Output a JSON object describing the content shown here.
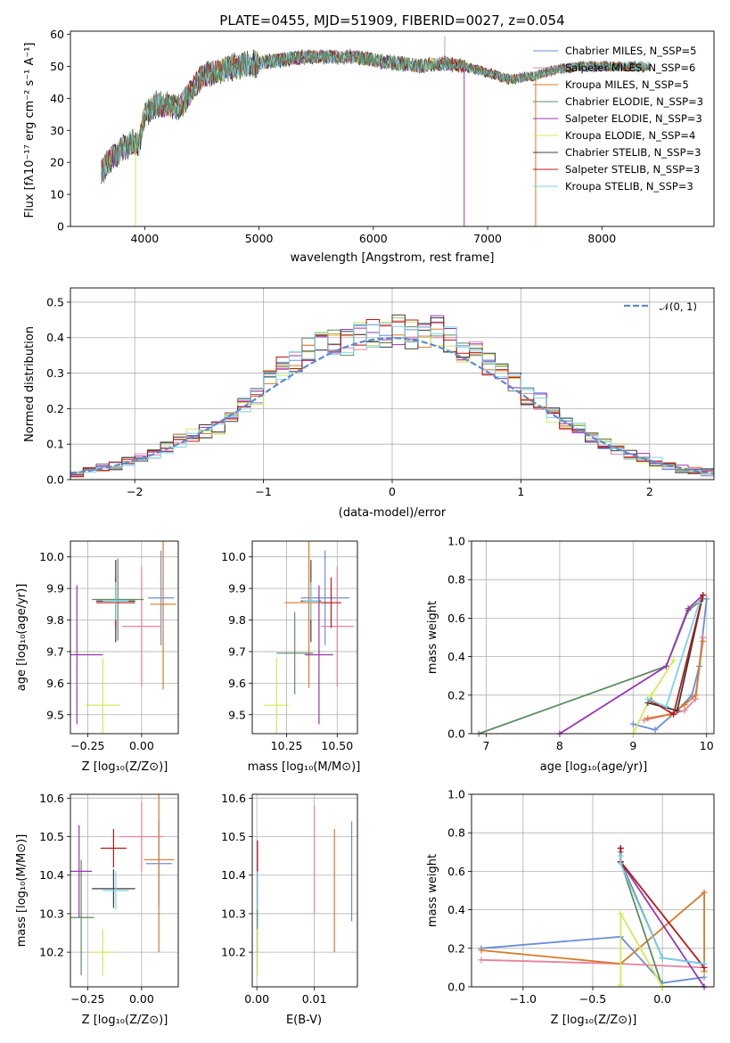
{
  "colors": [
    "#6a8fd8",
    "#e8829c",
    "#d97a28",
    "#5e8c62",
    "#9a34b4",
    "#d4e85a",
    "#3c3c3c",
    "#b81818",
    "#7ad4e8"
  ],
  "panels": {
    "spectrum": {
      "title": "PLATE=0455, MJD=51909, FIBERID=0027, z=0.054",
      "xlabel": "wavelength [Angstrom, rest frame]",
      "ylabel": "Flux [fλ10⁻¹⁷ erg cm⁻² s⁻¹ A⁻¹]"
    },
    "residuals": {
      "xlabel": "(data-model)/error",
      "ylabel": "Normed distribution",
      "legend_normal": "𝒩(0, 1)"
    },
    "age_Z": {
      "xlabel": "Z [log₁₀(Z/Z⊙)]",
      "ylabel": "age  [log₁₀(age/yr)]"
    },
    "age_mass": {
      "xlabel": "mass [log₁₀(M/M⊙)]"
    },
    "mw_age": {
      "xlabel": "age  [log₁₀(age/yr)]",
      "ylabel": "mass weight"
    },
    "mass_Z": {
      "xlabel": "Z [log₁₀(Z/Z⊙)]",
      "ylabel": "mass [log₁₀(M/M⊙)]"
    },
    "mass_ebv": {
      "xlabel": "E(B-V)"
    },
    "mw_Z": {
      "xlabel": "Z [log₁₀(Z/Z⊙)]",
      "ylabel": "mass weight"
    }
  },
  "chart_data": [
    {
      "type": "line",
      "panel": "spectrum",
      "title": "PLATE=0455, MJD=51909, FIBERID=0027, z=0.054",
      "xlabel": "wavelength [Angstrom, rest frame]",
      "ylabel": "Flux [fλ10⁻¹⁷ erg cm⁻² s⁻¹ A⁻¹]",
      "xlim": [
        3350,
        8980
      ],
      "ylim": [
        0,
        61
      ],
      "xticks": [
        4000,
        5000,
        6000,
        7000,
        8000
      ],
      "yticks": [
        0,
        10,
        20,
        30,
        40,
        50,
        60
      ],
      "grid": false,
      "legend": "top-right",
      "series": [
        {
          "name": "Chabrier MILES, N_SSP=5"
        },
        {
          "name": "Salpeter MILES, N_SSP=6"
        },
        {
          "name": "Kroupa MILES, N_SSP=5"
        },
        {
          "name": "Chabrier ELODIE, N_SSP=3"
        },
        {
          "name": "Salpeter ELODIE, N_SSP=3"
        },
        {
          "name": "Kroupa ELODIE, N_SSP=4"
        },
        {
          "name": "Chabrier STELIB, N_SSP=3"
        },
        {
          "name": "Salpeter STELIB, N_SSP=3"
        },
        {
          "name": "Kroupa STELIB, N_SSP=3"
        }
      ],
      "continuum": {
        "x": [
          3620,
          3700,
          3800,
          3900,
          3950,
          4000,
          4100,
          4200,
          4300,
          4400,
          4500,
          4600,
          4800,
          5000,
          5200,
          5400,
          5600,
          5800,
          6000,
          6200,
          6400,
          6600,
          6800,
          7000,
          7200,
          7400,
          7600,
          7800,
          8000,
          8200,
          8400
        ],
        "y": [
          17,
          21,
          24,
          26,
          26,
          35,
          38,
          38,
          37,
          42,
          47,
          48,
          50,
          51,
          52,
          53,
          53,
          53,
          52,
          51,
          50,
          51,
          50,
          48,
          46,
          47,
          49,
          50,
          50,
          50,
          50
        ]
      }
    },
    {
      "type": "step",
      "panel": "residuals",
      "xlabel": "(data-model)/error",
      "ylabel": "Normed distribution",
      "xlim": [
        -2.5,
        2.5
      ],
      "ylim": [
        0,
        0.54
      ],
      "xticks": [
        -2,
        -1,
        0,
        1,
        2
      ],
      "yticks": [
        0,
        0.1,
        0.2,
        0.3,
        0.4,
        0.5
      ],
      "grid": true,
      "legend": "top-right",
      "bin_width": 0.1,
      "hist_x": [
        -2.45,
        -2.35,
        -2.25,
        -2.15,
        -2.05,
        -1.95,
        -1.85,
        -1.75,
        -1.65,
        -1.55,
        -1.45,
        -1.35,
        -1.25,
        -1.15,
        -1.05,
        -0.95,
        -0.85,
        -0.75,
        -0.65,
        -0.55,
        -0.45,
        -0.35,
        -0.25,
        -0.15,
        -0.05,
        0.05,
        0.15,
        0.25,
        0.35,
        0.45,
        0.55,
        0.65,
        0.75,
        0.85,
        0.95,
        1.05,
        1.15,
        1.25,
        1.35,
        1.45,
        1.55,
        1.65,
        1.75,
        1.85,
        1.95,
        2.05,
        2.15,
        2.25,
        2.35,
        2.45
      ],
      "hist_y": [
        0.015,
        0.025,
        0.035,
        0.04,
        0.05,
        0.06,
        0.075,
        0.09,
        0.11,
        0.125,
        0.135,
        0.15,
        0.18,
        0.21,
        0.24,
        0.28,
        0.31,
        0.34,
        0.36,
        0.38,
        0.39,
        0.39,
        0.4,
        0.41,
        0.41,
        0.42,
        0.41,
        0.4,
        0.42,
        0.39,
        0.37,
        0.35,
        0.32,
        0.3,
        0.27,
        0.24,
        0.22,
        0.18,
        0.16,
        0.14,
        0.12,
        0.1,
        0.085,
        0.07,
        0.06,
        0.05,
        0.04,
        0.03,
        0.025,
        0.02
      ],
      "normal": {
        "mean": 0,
        "sigma": 1,
        "name": "𝒩(0, 1)"
      }
    },
    {
      "type": "scatter",
      "panel": "age_Z",
      "xlabel": "Z [log₁₀(Z/Z⊙)]",
      "ylabel": "age  [log₁₀(age/yr)]",
      "xlim": [
        -0.33,
        0.17
      ],
      "ylim": [
        9.44,
        10.05
      ],
      "xticks": [
        -0.25,
        0.0
      ],
      "yticks": [
        9.5,
        9.6,
        9.7,
        9.8,
        9.9,
        10.0
      ],
      "points": [
        {
          "s": 0,
          "x": 0.09,
          "y": 9.87,
          "xe": 0.06,
          "ye": 0.15
        },
        {
          "s": 1,
          "x": 0.0,
          "y": 9.78,
          "xe": 0.09,
          "ye": 0.19
        },
        {
          "s": 2,
          "x": 0.1,
          "y": 9.85,
          "xe": 0.06,
          "ye": 0.27
        },
        {
          "s": 3,
          "x": -0.11,
          "y": 9.865,
          "xe": 0.12,
          "ye": 0.13
        },
        {
          "s": 4,
          "x": -0.3,
          "y": 9.69,
          "xe": 0.12,
          "ye": 0.22
        },
        {
          "s": 5,
          "x": -0.18,
          "y": 9.53,
          "xe": 0.08,
          "ye": 0.15
        },
        {
          "s": 6,
          "x": -0.12,
          "y": 9.86,
          "xe": 0.09,
          "ye": 0.13
        },
        {
          "s": 7,
          "x": -0.12,
          "y": 9.855,
          "xe": 0.09,
          "ye": 0.08
        },
        {
          "s": 8,
          "x": -0.12,
          "y": 9.86,
          "xe": 0.06,
          "ye": 0.06
        }
      ]
    },
    {
      "type": "scatter",
      "panel": "age_mass",
      "xlabel": "mass [log₁₀(M/M⊙)]",
      "xlim": [
        10.08,
        10.6
      ],
      "ylim": [
        9.44,
        10.05
      ],
      "xticks": [
        10.25,
        10.5
      ],
      "yticks": [
        9.5,
        9.6,
        9.7,
        9.8,
        9.9,
        10.0
      ],
      "points": [
        {
          "s": 0,
          "x": 10.44,
          "y": 9.87,
          "xe": 0.12,
          "ye": 0.15
        },
        {
          "s": 1,
          "x": 10.5,
          "y": 9.78,
          "xe": 0.08,
          "ye": 0.19
        },
        {
          "s": 2,
          "x": 10.36,
          "y": 9.855,
          "xe": 0.12,
          "ye": 0.27
        },
        {
          "s": 3,
          "x": 10.29,
          "y": 9.695,
          "xe": 0.09,
          "ye": 0.13
        },
        {
          "s": 4,
          "x": 10.41,
          "y": 9.69,
          "xe": 0.07,
          "ye": 0.22
        },
        {
          "s": 5,
          "x": 10.2,
          "y": 9.53,
          "xe": 0.06,
          "ye": 0.15
        },
        {
          "s": 6,
          "x": 10.37,
          "y": 9.86,
          "xe": 0.05,
          "ye": 0.13
        },
        {
          "s": 7,
          "x": 10.47,
          "y": 9.855,
          "xe": 0.05,
          "ye": 0.08
        },
        {
          "s": 8,
          "x": 10.37,
          "y": 9.86,
          "xe": 0.04,
          "ye": 0.06
        }
      ]
    },
    {
      "type": "line",
      "panel": "mw_age",
      "xlabel": "age  [log₁₀(age/yr)]",
      "ylabel": "mass weight",
      "xlim": [
        6.8,
        10.1
      ],
      "ylim": [
        0,
        1.0
      ],
      "xticks": [
        7,
        8,
        9,
        10
      ],
      "yticks": [
        0,
        0.2,
        0.4,
        0.6,
        0.8,
        1.0
      ],
      "series": [
        {
          "x": [
            9.0,
            9.3,
            9.6,
            9.8,
            9.9,
            10.0
          ],
          "y": [
            0.05,
            0.02,
            0.12,
            0.2,
            0.35,
            0.7
          ]
        },
        {
          "x": [
            9.15,
            9.5,
            9.7,
            9.85,
            9.95
          ],
          "y": [
            0.07,
            0.1,
            0.12,
            0.18,
            0.5
          ]
        },
        {
          "x": [
            9.2,
            9.5,
            9.7,
            9.85,
            9.95
          ],
          "y": [
            0.08,
            0.1,
            0.15,
            0.2,
            0.48
          ]
        },
        {
          "x": [
            6.9,
            9.45,
            9.75,
            9.95
          ],
          "y": [
            0.0,
            0.35,
            0.64,
            0.7
          ]
        },
        {
          "x": [
            8.0,
            9.45,
            9.75,
            9.95
          ],
          "y": [
            0.0,
            0.35,
            0.65,
            0.72
          ]
        },
        {
          "x": [
            9.0,
            9.25,
            9.55
          ],
          "y": [
            0.0,
            0.2,
            0.38
          ]
        },
        {
          "x": [
            9.2,
            9.6,
            9.95
          ],
          "y": [
            0.16,
            0.12,
            0.72
          ]
        },
        {
          "x": [
            9.25,
            9.55,
            9.95
          ],
          "y": [
            0.17,
            0.1,
            0.72
          ]
        },
        {
          "x": [
            9.2,
            9.45,
            9.9
          ],
          "y": [
            0.18,
            0.14,
            0.68
          ]
        }
      ]
    },
    {
      "type": "scatter",
      "panel": "mass_Z",
      "xlabel": "Z [log₁₀(Z/Z⊙)]",
      "ylabel": "mass [log₁₀(M/M⊙)]",
      "xlim": [
        -0.33,
        0.17
      ],
      "ylim": [
        10.11,
        10.61
      ],
      "xticks": [
        -0.25,
        0.0
      ],
      "yticks": [
        10.2,
        10.3,
        10.4,
        10.5,
        10.6
      ],
      "points": [
        {
          "s": 0,
          "x": 0.08,
          "y": 10.43,
          "xe": 0.06,
          "ye": 0.11
        },
        {
          "s": 1,
          "x": 0.0,
          "y": 10.5,
          "xe": 0.1,
          "ye": 0.09
        },
        {
          "s": 2,
          "x": 0.08,
          "y": 10.44,
          "xe": 0.07,
          "ye": 0.24
        },
        {
          "s": 3,
          "x": -0.28,
          "y": 10.29,
          "xe": 0.06,
          "ye": 0.15
        },
        {
          "s": 4,
          "x": -0.29,
          "y": 10.41,
          "xe": 0.06,
          "ye": 0.12
        },
        {
          "s": 5,
          "x": -0.18,
          "y": 10.2,
          "xe": 0.05,
          "ye": 0.06
        },
        {
          "s": 6,
          "x": -0.13,
          "y": 10.365,
          "xe": 0.1,
          "ye": 0.05
        },
        {
          "s": 7,
          "x": -0.13,
          "y": 10.47,
          "xe": 0.06,
          "ye": 0.05
        },
        {
          "s": 8,
          "x": -0.12,
          "y": 10.36,
          "xe": 0.06,
          "ye": 0.05
        }
      ]
    },
    {
      "type": "scatter",
      "panel": "mass_ebv",
      "xlabel": "E(B-V)",
      "xlim": [
        -0.0008,
        0.0175
      ],
      "ylim": [
        10.11,
        10.61
      ],
      "xticks": [
        0.0,
        0.01
      ],
      "xticklabels": [
        "0.00",
        "0.01"
      ],
      "yticks": [
        10.2,
        10.3,
        10.4,
        10.5,
        10.6
      ],
      "points": [
        {
          "s": 0,
          "x": 0.0165,
          "y": 10.41,
          "xe": 0.0,
          "ye": 0.13
        },
        {
          "s": 1,
          "x": 0.01,
          "y": 10.44,
          "xe": 0.0,
          "ye": 0.14
        },
        {
          "s": 2,
          "x": 0.0135,
          "y": 10.36,
          "xe": 0.0,
          "ye": 0.16
        },
        {
          "s": 3,
          "x": 0.0001,
          "y": 10.3,
          "xe": 0.0,
          "ye": 0.1
        },
        {
          "s": 4,
          "x": 0.0001,
          "y": 10.41,
          "xe": 0.0,
          "ye": 0.08
        },
        {
          "s": 5,
          "x": 0.0001,
          "y": 10.2,
          "xe": 0.0,
          "ye": 0.06
        },
        {
          "s": 6,
          "x": 0.0001,
          "y": 10.36,
          "xe": 0.0,
          "ye": 0.05
        },
        {
          "s": 7,
          "x": 0.0001,
          "y": 10.42,
          "xe": 0.0,
          "ye": 0.07
        },
        {
          "s": 8,
          "x": 0.0001,
          "y": 10.36,
          "xe": 0.0,
          "ye": 0.05
        }
      ]
    },
    {
      "type": "line",
      "panel": "mw_Z",
      "xlabel": "Z [log₁₀(Z/Z⊙)]",
      "ylabel": "mass weight",
      "xlim": [
        -1.37,
        0.37
      ],
      "ylim": [
        0,
        1.0
      ],
      "xticks": [
        -1.0,
        -0.5,
        0.0
      ],
      "yticks": [
        0,
        0.2,
        0.4,
        0.6,
        0.8,
        1.0
      ],
      "series": [
        {
          "x": [
            -1.3,
            -0.3,
            0.0,
            0.3
          ],
          "y": [
            0.2,
            0.26,
            0.02,
            0.05
          ]
        },
        {
          "x": [
            -1.3,
            -0.3,
            0.3
          ],
          "y": [
            0.14,
            0.12,
            0.1
          ]
        },
        {
          "x": [
            -1.3,
            -0.3,
            0.3,
            0.3
          ],
          "y": [
            0.19,
            0.12,
            0.49,
            0.08
          ]
        },
        {
          "x": [
            -0.3,
            -0.3,
            0.0,
            0.3
          ],
          "y": [
            0.7,
            0.65,
            0.0,
            0.0
          ]
        },
        {
          "x": [
            -0.3,
            -0.3,
            0.3
          ],
          "y": [
            0.72,
            0.65,
            0.0
          ]
        },
        {
          "x": [
            -0.3,
            -0.3,
            0.0
          ],
          "y": [
            0.01,
            0.38,
            0.0
          ]
        },
        {
          "x": [
            -0.3,
            -0.3,
            0.0,
            0.3
          ],
          "y": [
            0.72,
            0.65,
            0.15,
            0.12
          ]
        },
        {
          "x": [
            -0.3,
            -0.3,
            0.3
          ],
          "y": [
            0.72,
            0.65,
            0.1
          ]
        },
        {
          "x": [
            -0.3,
            -0.3,
            0.0,
            0.3
          ],
          "y": [
            0.68,
            0.64,
            0.15,
            0.12
          ]
        }
      ]
    }
  ]
}
